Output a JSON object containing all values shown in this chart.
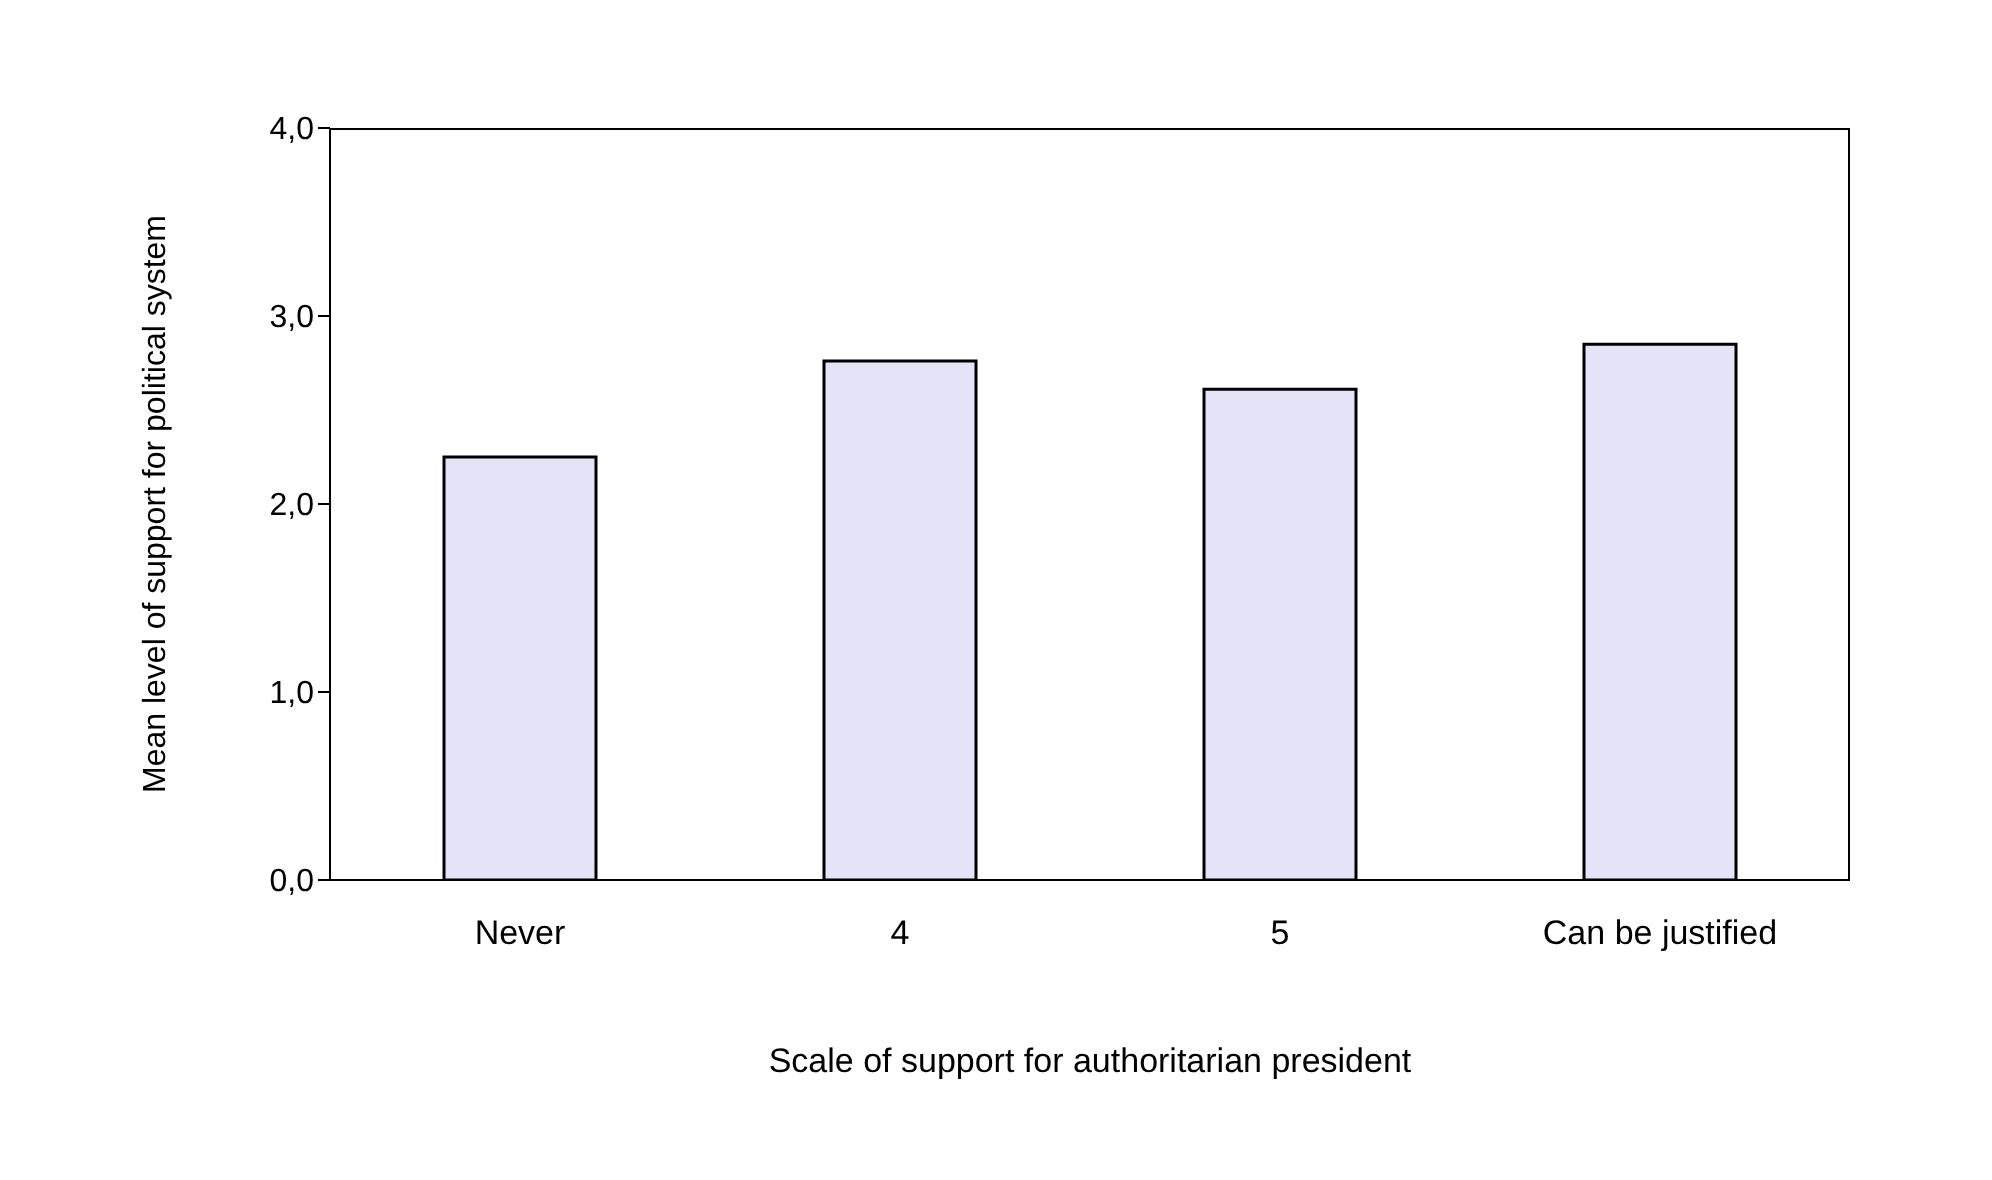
{
  "chart_data": {
    "type": "bar",
    "xlabel": "Scale of support for authoritarian president",
    "ylabel": "Mean level of support for political system",
    "categories": [
      "Never",
      "4",
      "5",
      "Can be justified"
    ],
    "values": [
      2.25,
      2.76,
      2.61,
      2.85
    ],
    "color": "#e4e4f8",
    "ylim": [
      0,
      4
    ],
    "yticks": [
      {
        "value": 0,
        "label": "0,0"
      },
      {
        "value": 1,
        "label": "1,0"
      },
      {
        "value": 2,
        "label": "2,0"
      },
      {
        "value": 3,
        "label": "3,0"
      },
      {
        "value": 4,
        "label": "4,0"
      }
    ],
    "grid": false,
    "legend": false
  }
}
